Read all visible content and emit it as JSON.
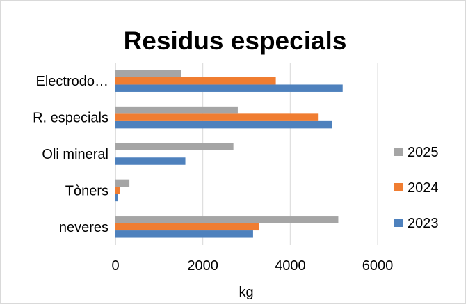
{
  "chart_data": {
    "type": "bar",
    "orientation": "horizontal",
    "title": "Residus especials",
    "xlabel": "kg",
    "ylabel": "",
    "xlim": [
      0,
      6000
    ],
    "xticks": [
      0,
      2000,
      4000,
      6000
    ],
    "grid": true,
    "legend_position": "right",
    "categories": [
      "neveres",
      "Tòners",
      "Oli mineral",
      "R. especials",
      "Electrodo…"
    ],
    "series": [
      {
        "name": "2023",
        "color": "#4e81bd",
        "values": [
          3150,
          50,
          1600,
          4950,
          5200
        ]
      },
      {
        "name": "2024",
        "color": "#f07d31",
        "values": [
          3280,
          100,
          0,
          4650,
          3670
        ]
      },
      {
        "name": "2025",
        "color": "#a5a5a5",
        "values": [
          5100,
          320,
          2700,
          2800,
          1500
        ]
      }
    ]
  }
}
